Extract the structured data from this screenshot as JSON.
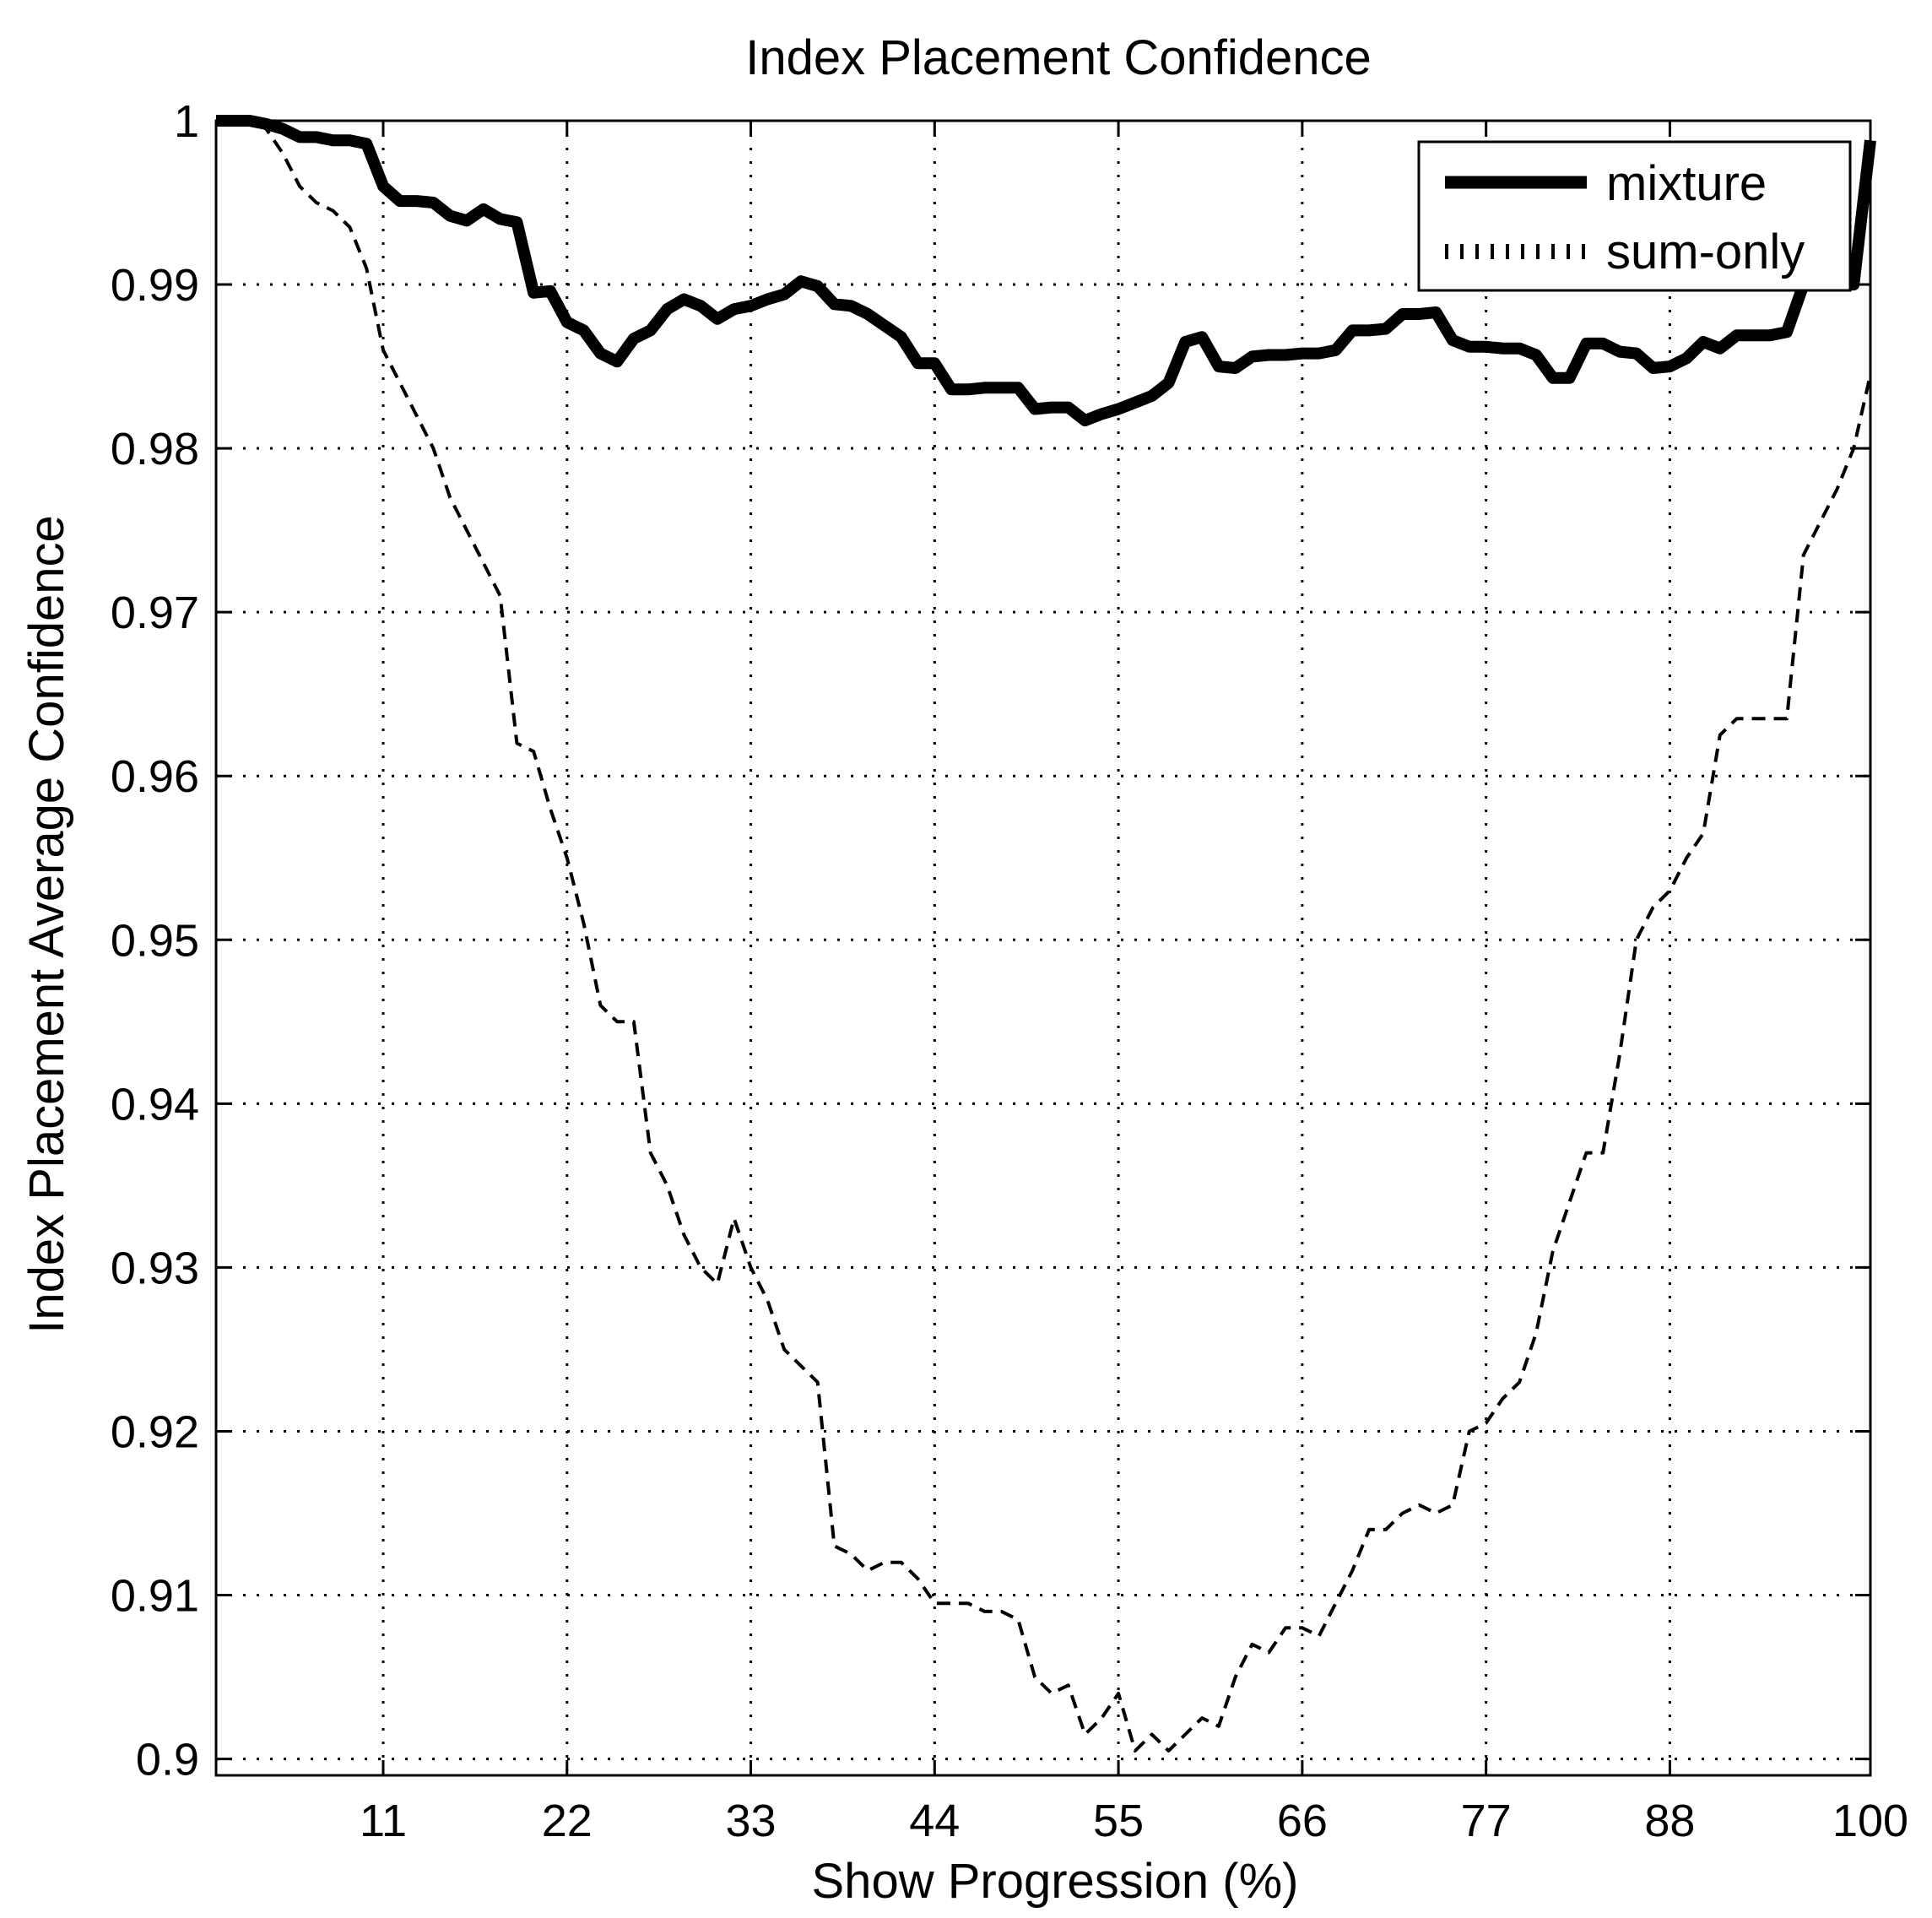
{
  "chart_data": {
    "type": "line",
    "title": "Index Placement Confidence",
    "xlabel": "Show Progression (%)",
    "ylabel": "Index Placement Average Confidence",
    "xlim": [
      1,
      100
    ],
    "ylim": [
      0.899,
      1.0
    ],
    "xticks": [
      11,
      22,
      33,
      44,
      55,
      66,
      77,
      88,
      100
    ],
    "xtick_labels": [
      "11",
      "22",
      "33",
      "44",
      "55",
      "66",
      "77",
      "88",
      "100"
    ],
    "yticks": [
      0.9,
      0.91,
      0.92,
      0.93,
      0.94,
      0.95,
      0.96,
      0.97,
      0.98,
      0.99,
      1.0
    ],
    "ytick_labels": [
      "0.9",
      "0.91",
      "0.92",
      "0.93",
      "0.94",
      "0.95",
      "0.96",
      "0.97",
      "0.98",
      "0.99",
      "1"
    ],
    "grid": true,
    "legend_position": "top-right",
    "series": [
      {
        "name": "mixture",
        "style": "solid-thick",
        "color": "#000000",
        "x": [
          1,
          3,
          4,
          5,
          6,
          7,
          8,
          9,
          10,
          11,
          12,
          13,
          14,
          15,
          16,
          17,
          18,
          19,
          20,
          21,
          22,
          23,
          24,
          25,
          26,
          27,
          28,
          29,
          30,
          31,
          32,
          33,
          34,
          35,
          36,
          37,
          38,
          39,
          40,
          41,
          42,
          43,
          44,
          45,
          46,
          47,
          48,
          49,
          50,
          51,
          52,
          53,
          54,
          55,
          56,
          57,
          58,
          59,
          60,
          61,
          62,
          63,
          64,
          65,
          66,
          67,
          68,
          69,
          70,
          71,
          72,
          73,
          74,
          75,
          76,
          77,
          78,
          79,
          80,
          81,
          82,
          83,
          84,
          85,
          86,
          87,
          88,
          89,
          90,
          91,
          92,
          93,
          94,
          95,
          96,
          97,
          98,
          99,
          100
        ],
        "y": [
          1.0,
          1.0,
          0.9998,
          0.9995,
          0.999,
          0.999,
          0.9988,
          0.9988,
          0.9986,
          0.996,
          0.9951,
          0.9951,
          0.995,
          0.9942,
          0.9939,
          0.9946,
          0.994,
          0.9938,
          0.9895,
          0.9896,
          0.9877,
          0.9872,
          0.9858,
          0.9853,
          0.9867,
          0.9872,
          0.9885,
          0.9891,
          0.9887,
          0.9879,
          0.9885,
          0.9887,
          0.9891,
          0.9894,
          0.9902,
          0.9899,
          0.9888,
          0.9887,
          0.9882,
          0.9875,
          0.9868,
          0.9852,
          0.9852,
          0.9836,
          0.9836,
          0.9837,
          0.9837,
          0.9837,
          0.9824,
          0.9825,
          0.9825,
          0.9817,
          0.9821,
          0.9824,
          0.9828,
          0.9832,
          0.984,
          0.9865,
          0.9868,
          0.985,
          0.9849,
          0.9856,
          0.9857,
          0.9857,
          0.9858,
          0.9858,
          0.986,
          0.9872,
          0.9872,
          0.9873,
          0.9882,
          0.9882,
          0.9883,
          0.9866,
          0.9862,
          0.9862,
          0.9861,
          0.9861,
          0.9857,
          0.9843,
          0.9843,
          0.9864,
          0.9864,
          0.9859,
          0.9858,
          0.9849,
          0.985,
          0.9855,
          0.9865,
          0.9861,
          0.9869,
          0.9869,
          0.9869,
          0.9871,
          0.99,
          0.99,
          0.99,
          0.99,
          0.9988
        ]
      },
      {
        "name": "sum-only",
        "style": "dashed",
        "color": "#000000",
        "x": [
          1,
          3,
          4,
          5,
          6,
          7,
          8,
          9,
          10,
          11,
          12,
          13,
          14,
          15,
          16,
          17,
          18,
          19,
          20,
          21,
          22,
          23,
          24,
          25,
          26,
          27,
          28,
          29,
          30,
          31,
          32,
          33,
          34,
          35,
          36,
          37,
          38,
          39,
          40,
          41,
          42,
          43,
          44,
          45,
          46,
          47,
          48,
          49,
          50,
          51,
          52,
          53,
          54,
          55,
          56,
          57,
          58,
          59,
          60,
          61,
          62,
          63,
          64,
          65,
          66,
          67,
          68,
          69,
          70,
          71,
          72,
          73,
          74,
          75,
          76,
          77,
          78,
          79,
          80,
          81,
          82,
          83,
          84,
          85,
          86,
          87,
          88,
          89,
          90,
          91,
          92,
          93,
          94,
          95,
          96,
          97,
          98,
          99,
          100
        ],
        "y": [
          1.0,
          1.0,
          0.9995,
          0.998,
          0.996,
          0.995,
          0.9945,
          0.9935,
          0.991,
          0.986,
          0.984,
          0.982,
          0.98,
          0.977,
          0.975,
          0.973,
          0.971,
          0.962,
          0.9615,
          0.958,
          0.955,
          0.951,
          0.946,
          0.945,
          0.945,
          0.937,
          0.935,
          0.932,
          0.93,
          0.929,
          0.933,
          0.93,
          0.928,
          0.925,
          0.924,
          0.923,
          0.913,
          0.9125,
          0.9115,
          0.912,
          0.912,
          0.911,
          0.9095,
          0.9095,
          0.9095,
          0.909,
          0.909,
          0.9085,
          0.905,
          0.904,
          0.9045,
          0.9015,
          0.9025,
          0.904,
          0.9005,
          0.9015,
          0.9005,
          0.9015,
          0.9025,
          0.902,
          0.905,
          0.907,
          0.9065,
          0.908,
          0.908,
          0.9075,
          0.9095,
          0.9115,
          0.914,
          0.914,
          0.915,
          0.9155,
          0.915,
          0.9155,
          0.92,
          0.9205,
          0.922,
          0.923,
          0.926,
          0.931,
          0.934,
          0.937,
          0.937,
          0.943,
          0.95,
          0.952,
          0.953,
          0.955,
          0.9565,
          0.9625,
          0.9635,
          0.9635,
          0.9635,
          0.9635,
          0.9735,
          0.9755,
          0.9775,
          0.98,
          0.9845
        ]
      }
    ]
  }
}
